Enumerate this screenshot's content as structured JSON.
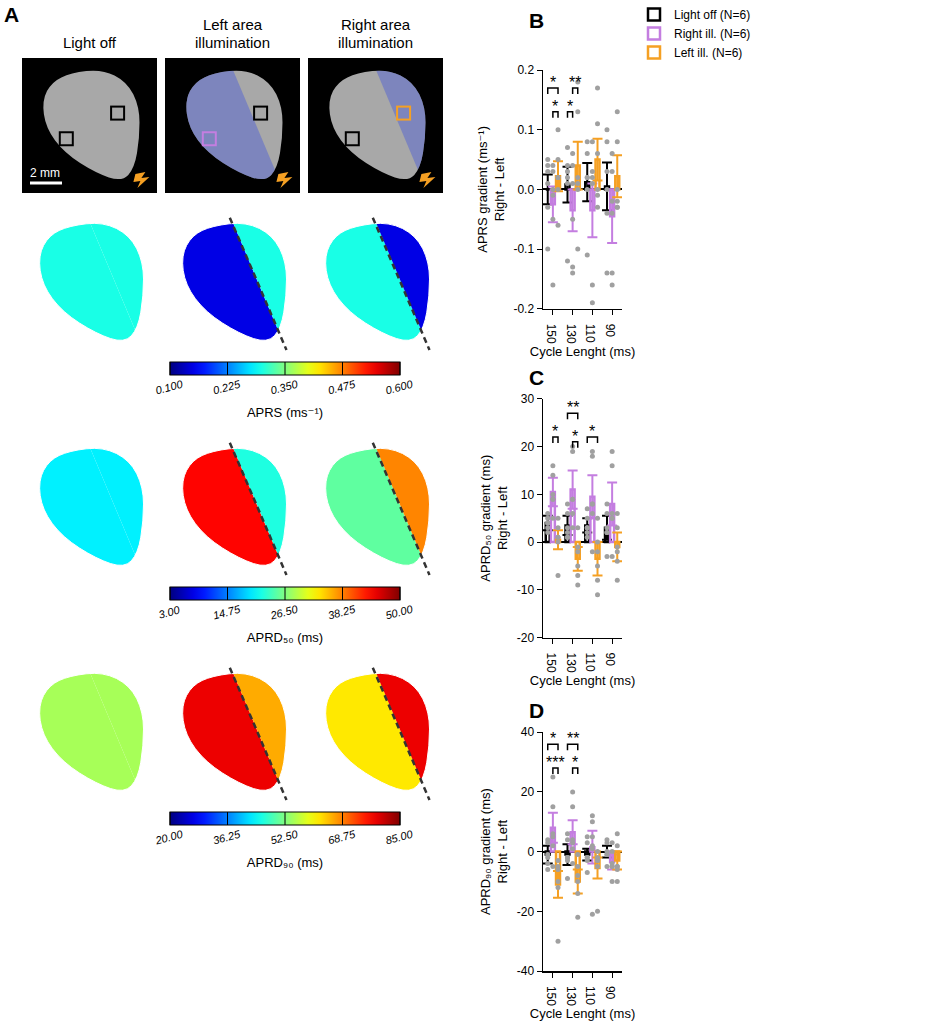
{
  "panel_a": {
    "label": "A",
    "columns": [
      "Light off",
      "Left area illumination",
      "Right area illumination"
    ],
    "scale_bar": "2 mm",
    "maps": [
      {
        "title": "APRS (ms⁻¹)",
        "clim": [
          0.1,
          0.6
        ],
        "cticks": [
          {
            "value": 0.1,
            "label": "0.100"
          },
          0.225,
          {
            "value": 0.35,
            "label": "0.350"
          },
          0.475,
          {
            "value": 0.6,
            "label": "0.600"
          }
        ],
        "cells": [
          {
            "left": 0.3,
            "right": 0.3
          },
          {
            "left": 0.15,
            "right": 0.3
          },
          {
            "left": 0.3,
            "right": 0.15
          }
        ]
      },
      {
        "title": "APRD₅₀ (ms)",
        "clim": [
          3,
          50
        ],
        "cticks": [
          {
            "value": 3,
            "label": "3.00"
          },
          14.75,
          {
            "value": 26.5,
            "label": "26.50"
          },
          38.25,
          {
            "value": 50,
            "label": "50.00"
          }
        ],
        "cells": [
          {
            "left": 20,
            "right": 20
          },
          {
            "left": 44,
            "right": 22
          },
          {
            "left": 25,
            "right": 38
          }
        ]
      },
      {
        "title": "APRD₉₀ (ms)",
        "clim": [
          20,
          85
        ],
        "cticks": [
          {
            "value": 20,
            "label": "20.00"
          },
          36.25,
          {
            "value": 52.5,
            "label": "52.50"
          },
          68.75,
          {
            "value": 85,
            "label": "85.00"
          }
        ],
        "cells": [
          {
            "left": 55,
            "right": 55
          },
          {
            "left": 78,
            "right": 66
          },
          {
            "left": 62,
            "right": 78
          }
        ]
      }
    ]
  },
  "chart_data": [
    {
      "label": "B",
      "type": "bar",
      "legend": "top",
      "grid": false,
      "categories": [
        150,
        130,
        110,
        90
      ],
      "xlabel": "Cycle Lenght (ms)",
      "ylabel": [
        "APRS gradient (ms⁻¹)",
        "Right - Left"
      ],
      "ylim": [
        -0.2,
        0.2
      ],
      "yticks": [
        -0.2,
        -0.1,
        {
          "value": 0,
          "label": "0.0"
        },
        0.1,
        0.2
      ],
      "series": [
        {
          "name": "Light off (N=6)",
          "color": "#000000",
          "values": [
            0.0,
            0.008,
            0.012,
            0.005
          ],
          "error": [
            0.025,
            0.03,
            0.032,
            0.04
          ],
          "points": [
            [
              0.05,
              -0.1,
              0.03,
              0.01,
              -0.03,
              0.04
            ],
            [
              0.07,
              -0.12,
              0.03,
              0.04,
              0.01,
              0.02
            ],
            [
              0.08,
              -0.11,
              0.06,
              0.02,
              0.0,
              0.02
            ],
            [
              0.1,
              -0.14,
              0.08,
              0.03,
              -0.04,
              0.0
            ]
          ]
        },
        {
          "name": "Right ill. (N=6)",
          "color": "#c47ee0",
          "values": [
            -0.025,
            -0.035,
            -0.035,
            -0.045
          ],
          "error": [
            0.03,
            0.035,
            0.045,
            0.045
          ],
          "points": [
            [
              -0.16,
              -0.05,
              0.04,
              0.03,
              -0.01,
              0.0
            ],
            [
              -0.14,
              -0.13,
              0.06,
              0.04,
              -0.05,
              0.01
            ],
            [
              -0.19,
              -0.16,
              0.08,
              0.02,
              0.03,
              0.01
            ],
            [
              -0.16,
              -0.14,
              0.06,
              0.03,
              -0.04,
              -0.02
            ]
          ]
        },
        {
          "name": "Left ill. (N=6)",
          "color": "#f5a023",
          "values": [
            0.022,
            0.04,
            0.05,
            0.022
          ],
          "error": [
            0.025,
            0.04,
            0.035,
            0.035
          ],
          "points": [
            [
              0.1,
              0.05,
              -0.06,
              0.0,
              0.02,
              0.02
            ],
            [
              0.18,
              0.13,
              -0.1,
              0.02,
              0.0,
              0.01
            ],
            [
              0.17,
              0.11,
              -0.03,
              0.06,
              0.0,
              -0.01
            ],
            [
              0.13,
              0.08,
              -0.03,
              0.0,
              -0.03,
              -0.02
            ]
          ]
        }
      ],
      "significance": [
        {
          "category": 150,
          "from": 0,
          "to": 2,
          "y": 0.17,
          "label": "*"
        },
        {
          "category": 150,
          "from": 1,
          "to": 2,
          "y": 0.13,
          "label": "*"
        },
        {
          "category": 130,
          "from": 0,
          "to": 1,
          "y": 0.13,
          "label": "*"
        },
        {
          "category": 130,
          "from": 1,
          "to": 2,
          "y": 0.17,
          "label": "**"
        }
      ]
    },
    {
      "label": "C",
      "type": "bar",
      "grid": false,
      "categories": [
        150,
        130,
        110,
        90
      ],
      "xlabel": "Cycle Lenght (ms)",
      "ylabel": [
        "APRD₅₀ gradient (ms)",
        "Right - Left"
      ],
      "ylim": [
        -20,
        30
      ],
      "yticks": [
        -20,
        -10,
        0,
        10,
        20,
        30
      ],
      "series": [
        {
          "name": "Light off (N=6)",
          "color": "#000000",
          "values": [
            4,
            3.5,
            3.5,
            3
          ],
          "error": [
            1.5,
            2,
            1.5,
            2.5
          ],
          "points": [
            [
              6,
              5,
              2,
              3,
              4,
              4
            ],
            [
              8,
              6,
              1,
              2,
              3,
              1
            ],
            [
              7,
              5,
              1,
              2,
              3,
              3
            ],
            [
              8,
              6,
              -3,
              2,
              3,
              2
            ]
          ]
        },
        {
          "name": "Right ill. (N=6)",
          "color": "#c47ee0",
          "values": [
            10.5,
            11,
            9.5,
            8
          ],
          "error": [
            3,
            4,
            4.5,
            4.5
          ],
          "points": [
            [
              16,
              14,
              5,
              9,
              10,
              9
            ],
            [
              20,
              19,
              3,
              6,
              9,
              9
            ],
            [
              19,
              18,
              -2,
              6,
              8,
              8
            ],
            [
              19,
              16,
              -3,
              5,
              6,
              5
            ]
          ]
        },
        {
          "name": "Left ill. (N=6)",
          "color": "#f5a023",
          "values": [
            0.5,
            -3.5,
            -3.5,
            -1
          ],
          "error": [
            2,
            2.5,
            3.5,
            3
          ],
          "points": [
            [
              5,
              3,
              -7,
              1,
              0,
              1
            ],
            [
              3,
              -2,
              -9,
              -7,
              -5,
              -1
            ],
            [
              5,
              -2,
              -11,
              -8,
              -5,
              0
            ],
            [
              6,
              3,
              -8,
              -4,
              -2,
              -1
            ]
          ]
        }
      ],
      "significance": [
        {
          "category": 150,
          "from": 1,
          "to": 2,
          "y": 22,
          "label": "*"
        },
        {
          "category": 130,
          "from": 0,
          "to": 2,
          "y": 27,
          "label": "**"
        },
        {
          "category": 130,
          "from": 1,
          "to": 2,
          "y": 21,
          "label": "*"
        },
        {
          "category": 110,
          "from": 0,
          "to": 2,
          "y": 22,
          "label": "*"
        }
      ]
    },
    {
      "label": "D",
      "type": "bar",
      "grid": false,
      "categories": [
        150,
        130,
        110,
        90
      ],
      "xlabel": "Cycle Lenght (ms)",
      "ylabel": [
        "APRD₉₀ gradient (ms)",
        "Right - Left"
      ],
      "ylim": [
        -40,
        40
      ],
      "yticks": [
        -40,
        -20,
        0,
        20,
        40
      ],
      "series": [
        {
          "name": "Light off (N=6)",
          "color": "#000000",
          "values": [
            -1,
            -1,
            -1,
            0
          ],
          "error": [
            3,
            3.5,
            2,
            2
          ],
          "points": [
            [
              4,
              3,
              -6,
              -4,
              -2,
              -1
            ],
            [
              6,
              4,
              -9,
              -3,
              -2,
              -2
            ],
            [
              5,
              3,
              -7,
              -3,
              -2,
              -2
            ],
            [
              4,
              3,
              -5,
              -1,
              0,
              -1
            ]
          ]
        },
        {
          "name": "Right ill. (N=6)",
          "color": "#c47ee0",
          "values": [
            8,
            6.5,
            1.5,
            -3.5
          ],
          "error": [
            5,
            4,
            5.5,
            2.5
          ],
          "points": [
            [
              25,
              15,
              -5,
              5,
              6,
              2
            ],
            [
              20,
              15,
              -4,
              3,
              4,
              1
            ],
            [
              12,
              10,
              -21,
              5,
              2,
              1
            ],
            [
              3,
              0,
              -10,
              -5,
              -4,
              -5
            ]
          ]
        },
        {
          "name": "Left ill. (N=6)",
          "color": "#f5a023",
          "values": [
            -11,
            -10,
            -5.5,
            -3
          ],
          "error": [
            4.5,
            4,
            3.5,
            3
          ],
          "points": [
            [
              -3,
              -5,
              -30,
              -10,
              -12,
              -6
            ],
            [
              -1,
              -5,
              -22,
              -14,
              -10,
              -8
            ],
            [
              0,
              -2,
              -20,
              -5,
              -3,
              -3
            ],
            [
              6,
              2,
              -10,
              -6,
              -5,
              -5
            ]
          ]
        }
      ],
      "significance": [
        {
          "category": 150,
          "from": 0,
          "to": 2,
          "y": 36,
          "label": "*"
        },
        {
          "category": 150,
          "from": 1,
          "to": 2,
          "y": 28,
          "label": "***"
        },
        {
          "category": 130,
          "from": 0,
          "to": 2,
          "y": 36,
          "label": "**"
        },
        {
          "category": 130,
          "from": 1,
          "to": 2,
          "y": 28,
          "label": "*"
        }
      ]
    }
  ]
}
